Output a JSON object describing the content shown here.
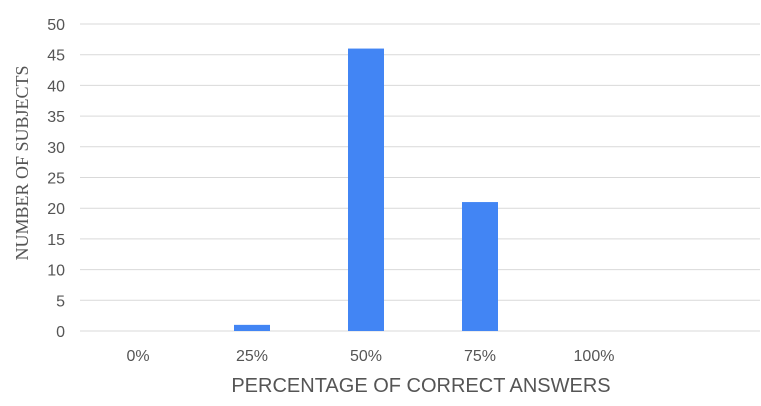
{
  "chart_data": {
    "type": "bar",
    "title": "",
    "xlabel": "PERCENTAGE OF CORRECT ANSWERS",
    "ylabel": "NUMBER  OF SUBJECTS",
    "categories": [
      "0%",
      "25%",
      "50%",
      "75%",
      "100%"
    ],
    "series": [
      {
        "values": [
          0,
          1,
          46,
          21,
          0
        ]
      }
    ],
    "ylim": [
      0,
      50
    ],
    "yticks": [
      "0",
      "5",
      "10",
      "15",
      "20",
      "25",
      "30",
      "35",
      "40",
      "45",
      "50"
    ],
    "grid": "horizontal",
    "legend": "none",
    "colors": {
      "bar": "#4285F4",
      "grid": "#D9D9D9",
      "text": "#555555"
    }
  }
}
